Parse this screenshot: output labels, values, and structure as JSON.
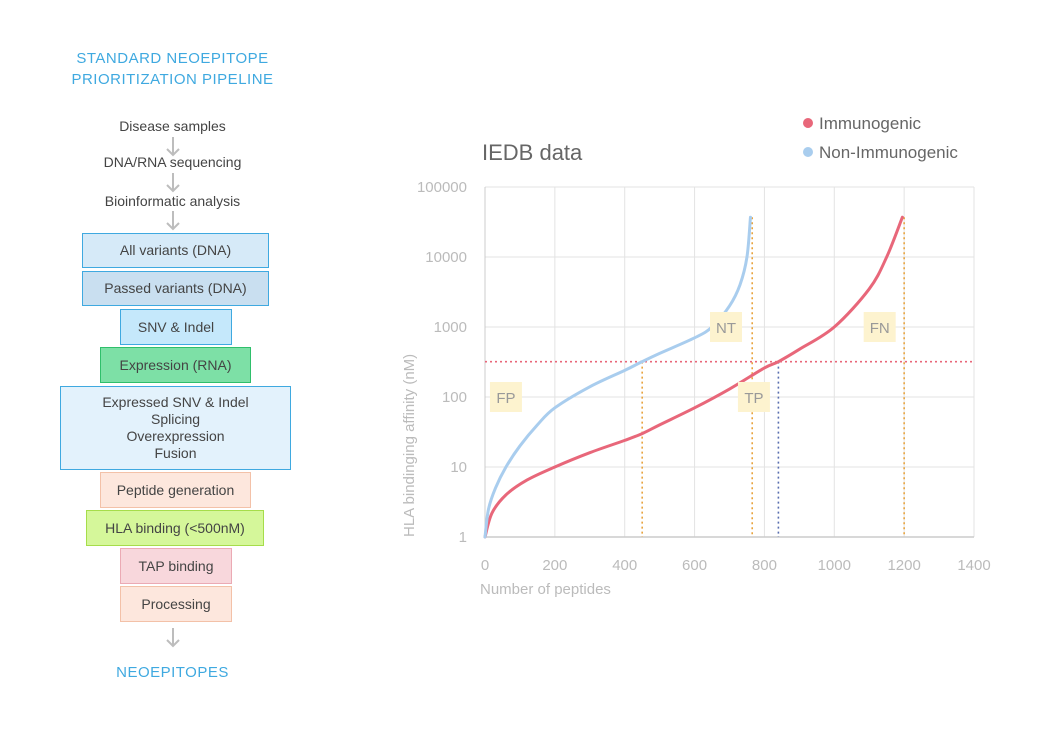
{
  "pipeline": {
    "title_lines": [
      "STANDARD NEOEPITOPE",
      "PRIORITIZATION PIPELINE"
    ],
    "steps": [
      "Disease samples",
      "DNA/RNA sequencing",
      "Bioinformatic analysis"
    ],
    "boxes": [
      {
        "lines": [
          "All variants (DNA)"
        ],
        "fill": "#d6eaf8",
        "border": "#3fa9e0"
      },
      {
        "lines": [
          "Passed variants (DNA)"
        ],
        "fill": "#c9dff0",
        "border": "#3fa9e0"
      },
      {
        "lines": [
          "SNV & Indel"
        ],
        "fill": "#c5e8fb",
        "border": "#3fa9e0"
      },
      {
        "lines": [
          "Expression (RNA)"
        ],
        "fill": "#7de0a6",
        "border": "#2fbf6b"
      },
      {
        "lines": [
          "Expressed SNV & Indel",
          "Splicing",
          "Overexpression",
          "Fusion"
        ],
        "fill": "#e3f2fc",
        "border": "#3fa9e0"
      },
      {
        "lines": [
          "Peptide generation"
        ],
        "fill": "#fde7dd",
        "border": "#f3c1a8"
      },
      {
        "lines": [
          "HLA binding (<500nM)"
        ],
        "fill": "#d5f79a",
        "border": "#a6dd4a"
      },
      {
        "lines": [
          "TAP binding"
        ],
        "fill": "#f8d7dc",
        "border": "#ebaab4"
      },
      {
        "lines": [
          "Processing"
        ],
        "fill": "#fde7dd",
        "border": "#f3c1a8"
      }
    ],
    "footer": "NEOEPITOPES"
  },
  "chart_data": {
    "type": "line",
    "title": "IEDB data",
    "xlabel": "Number of peptides",
    "ylabel": "HLA bindinging affinity (nM)",
    "xlim": [
      0,
      1400
    ],
    "ylim": [
      1,
      100000
    ],
    "yscale": "log",
    "x_ticks": [
      0,
      200,
      400,
      600,
      800,
      1000,
      1200,
      1400
    ],
    "y_ticks": [
      1,
      10,
      100,
      1000,
      10000,
      100000
    ],
    "grid": true,
    "legend_position": "top-right",
    "series": [
      {
        "name": "Immunogenic",
        "color": "#e8677a",
        "points": [
          [
            0,
            1
          ],
          [
            20,
            2.2
          ],
          [
            60,
            4
          ],
          [
            120,
            6.5
          ],
          [
            200,
            10
          ],
          [
            300,
            16
          ],
          [
            400,
            24
          ],
          [
            450,
            30
          ],
          [
            500,
            40
          ],
          [
            600,
            70
          ],
          [
            700,
            130
          ],
          [
            800,
            260
          ],
          [
            840,
            320
          ],
          [
            900,
            480
          ],
          [
            1000,
            1000
          ],
          [
            1100,
            3500
          ],
          [
            1150,
            10000
          ],
          [
            1195,
            37000
          ]
        ]
      },
      {
        "name": "Non-Immunogenic",
        "color": "#a9cdee",
        "points": [
          [
            0,
            1
          ],
          [
            10,
            2.5
          ],
          [
            30,
            5
          ],
          [
            60,
            10
          ],
          [
            100,
            20
          ],
          [
            150,
            40
          ],
          [
            200,
            70
          ],
          [
            300,
            140
          ],
          [
            400,
            240
          ],
          [
            450,
            320
          ],
          [
            500,
            420
          ],
          [
            600,
            700
          ],
          [
            650,
            1000
          ],
          [
            700,
            2000
          ],
          [
            730,
            4000
          ],
          [
            750,
            10000
          ],
          [
            760,
            37000
          ]
        ]
      }
    ],
    "threshold_y": 320,
    "annotations": [
      "FP",
      "NT",
      "TP",
      "FN"
    ],
    "vertical_markers": [
      {
        "x": 450,
        "color": "#e8a33d"
      },
      {
        "x": 765,
        "color": "#e8a33d"
      },
      {
        "x": 840,
        "color": "#5a6fb0"
      },
      {
        "x": 1200,
        "color": "#e8a33d"
      }
    ],
    "threshold_color": "#e8677a",
    "annotation_fill": "#fdf3cf"
  }
}
